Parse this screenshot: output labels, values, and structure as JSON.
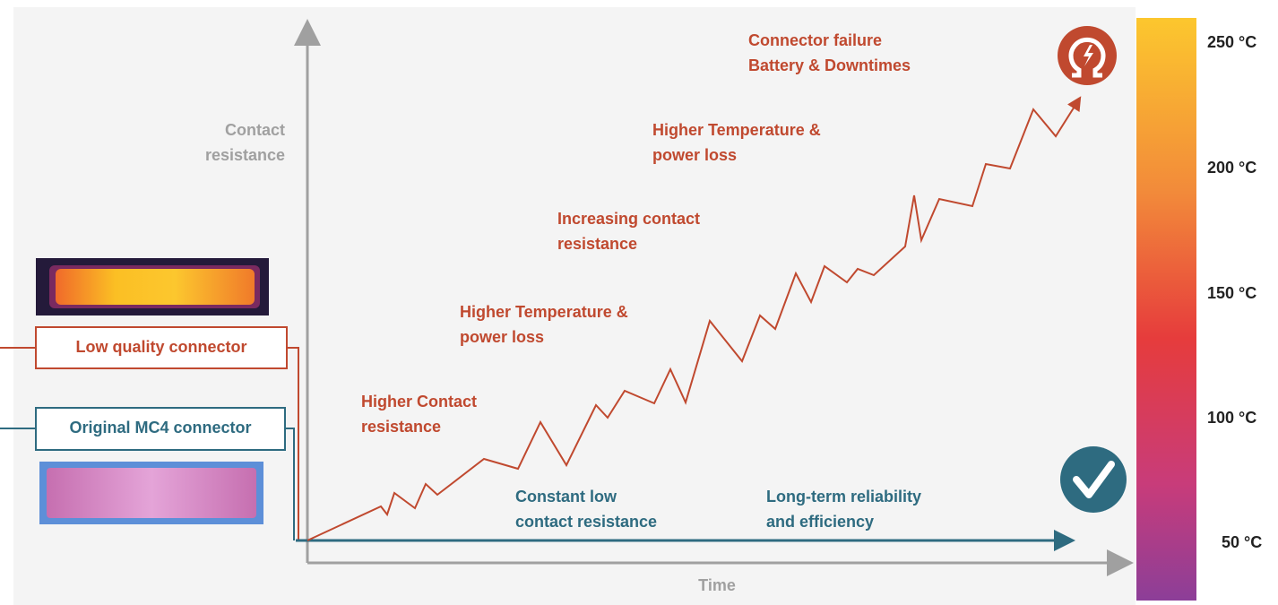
{
  "axes": {
    "y_label": [
      "Contact",
      "resistance"
    ],
    "x_label": "Time"
  },
  "connectors": {
    "low_quality": "Low quality connector",
    "original": "Original MC4 connector"
  },
  "annotations": {
    "failure": [
      "Connector failure",
      "Battery & Downtimes"
    ],
    "higher_temp_2": [
      "Higher Temperature &",
      "power loss"
    ],
    "increasing": [
      "Increasing contact",
      "resistance"
    ],
    "higher_temp_1": [
      "Higher Temperature &",
      "power loss"
    ],
    "higher_contact": [
      "Higher Contact",
      "resistance"
    ],
    "constant": [
      "Constant low",
      "contact resistance"
    ],
    "reliability": [
      "Long-term reliability",
      "and efficiency"
    ]
  },
  "color_scale": [
    "250 °C",
    "200 °C",
    "150 °C",
    "100 °C",
    "50 °C"
  ]
}
